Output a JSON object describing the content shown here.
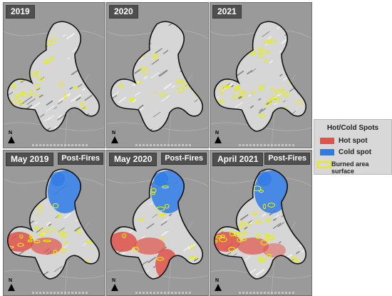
{
  "panels": [
    {
      "title": "2019",
      "badge": ""
    },
    {
      "title": "2020",
      "badge": ""
    },
    {
      "title": "2021",
      "badge": ""
    },
    {
      "title": "May 2019",
      "badge": "Post-Fires"
    },
    {
      "title": "May 2020",
      "badge": "Post-Fires"
    },
    {
      "title": "April 2021",
      "badge": "Post-Fires"
    }
  ],
  "north_arrow_label": "N",
  "legend": {
    "title": "Hot/Cold Spots",
    "items": [
      {
        "label": "Hot spot",
        "color": "#e0524a"
      },
      {
        "label": "Cold spot",
        "color": "#2e7be6"
      },
      {
        "label": "Burned area surface",
        "color": "#e8f000"
      }
    ]
  },
  "colors": {
    "background": "#9a9a9a",
    "boundary": "#111111",
    "hot": "#e0524a",
    "cold": "#2e7be6",
    "burned": "#e8f000"
  }
}
